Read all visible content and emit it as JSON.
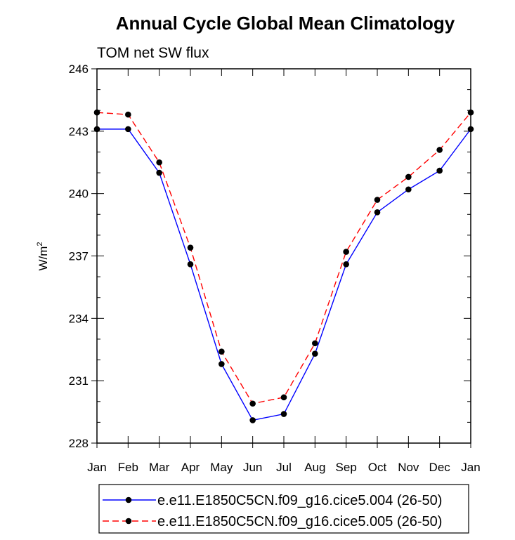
{
  "chart_data": {
    "type": "line",
    "title": "Annual Cycle Global Mean Climatology",
    "subtitle": "TOM net SW flux",
    "ylabel": "W/m",
    "ylabel_sup": "2",
    "xlabel": "",
    "categories": [
      "Jan",
      "Feb",
      "Mar",
      "Apr",
      "May",
      "Jun",
      "Jul",
      "Aug",
      "Sep",
      "Oct",
      "Nov",
      "Dec",
      "Jan"
    ],
    "ylim": [
      228,
      246
    ],
    "yticks": [
      "228",
      "231",
      "234",
      "237",
      "240",
      "243",
      "246"
    ],
    "series": [
      {
        "name": "e.e11.E1850C5CN.f09_g16.cice5.004 (26-50)",
        "color": "#0000ff",
        "dash": "solid",
        "values": [
          243.1,
          243.1,
          241.0,
          236.6,
          231.8,
          229.1,
          229.4,
          232.3,
          236.6,
          239.1,
          240.2,
          241.1,
          243.1
        ]
      },
      {
        "name": "e.e11.E1850C5CN.f09_g16.cice5.005 (26-50)",
        "color": "#ff0000",
        "dash": "dashed",
        "values": [
          243.9,
          243.8,
          241.5,
          237.4,
          232.4,
          229.9,
          230.2,
          232.8,
          237.2,
          239.7,
          240.8,
          242.1,
          243.9
        ]
      }
    ],
    "legend_position": "bottom"
  }
}
